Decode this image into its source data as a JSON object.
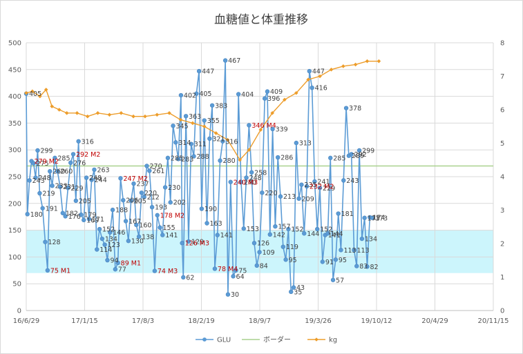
{
  "chart_data": {
    "type": "line",
    "title": "血糖値と体重推移",
    "x_ticks": [
      "16/6/29",
      "17/1/15",
      "17/8/3",
      "18/2/19",
      "18/9/7",
      "19/3/26",
      "19/10/12",
      "20/4/29",
      "20/11/15"
    ],
    "x_range": [
      "2016-06-29",
      "2020-11-15"
    ],
    "y_left": {
      "min": 0,
      "max": 500,
      "step": 50,
      "ticks": [
        "0",
        "50",
        "100",
        "150",
        "200",
        "250",
        "300",
        "350",
        "400",
        "450",
        "500"
      ]
    },
    "y_right": {
      "min": 0,
      "max": 8,
      "step": 1,
      "ticks": [
        "0",
        "1",
        "2",
        "3",
        "4",
        "5",
        "6",
        "7",
        "8"
      ]
    },
    "target_band": {
      "from": 70,
      "to": 150
    },
    "legend": {
      "position": "bottom",
      "entries": [
        "GLU",
        "ボーダー",
        "kg"
      ]
    },
    "colors": {
      "glu": "#5b9bd5",
      "border": "#a9d18e",
      "kg": "#ed9d2b",
      "band": "#ccf5fc",
      "grid": "#d9d9d9",
      "annotation": "#c00000"
    },
    "series": [
      {
        "name": "GLU",
        "values": [
          {
            "date": "2016-06-29",
            "y": 405
          },
          {
            "date": "2016-07-03",
            "y": 180
          },
          {
            "date": "2016-07-10",
            "y": 243
          },
          {
            "date": "2016-07-17",
            "y": 279
          },
          {
            "date": "2016-07-24",
            "y": 275
          },
          {
            "date": "2016-07-31",
            "y": 248
          },
          {
            "date": "2016-08-07",
            "y": 299
          },
          {
            "date": "2016-08-14",
            "y": 219
          },
          {
            "date": "2016-08-24",
            "y": 191
          },
          {
            "date": "2016-09-02",
            "y": 128
          },
          {
            "date": "2016-09-10",
            "y": 75
          },
          {
            "date": "2016-09-18",
            "y": 260
          },
          {
            "date": "2016-09-26",
            "y": 233
          },
          {
            "date": "2016-10-05",
            "y": 285
          },
          {
            "date": "2016-10-14",
            "y": 260
          },
          {
            "date": "2016-10-23",
            "y": 231
          },
          {
            "date": "2016-11-01",
            "y": 182
          },
          {
            "date": "2016-11-10",
            "y": 176
          },
          {
            "date": "2016-11-19",
            "y": 229
          },
          {
            "date": "2016-11-28",
            "y": 276
          },
          {
            "date": "2016-12-07",
            "y": 292
          },
          {
            "date": "2016-12-16",
            "y": 205
          },
          {
            "date": "2016-12-25",
            "y": 316
          },
          {
            "date": "2017-01-03",
            "y": 179
          },
          {
            "date": "2017-01-12",
            "y": 169
          },
          {
            "date": "2017-01-21",
            "y": 248
          },
          {
            "date": "2017-01-30",
            "y": 171
          },
          {
            "date": "2017-02-08",
            "y": 244
          },
          {
            "date": "2017-02-17",
            "y": 263
          },
          {
            "date": "2017-02-26",
            "y": 114
          },
          {
            "date": "2017-03-07",
            "y": 152
          },
          {
            "date": "2017-03-16",
            "y": 134
          },
          {
            "date": "2017-03-25",
            "y": 123
          },
          {
            "date": "2017-04-03",
            "y": 94
          },
          {
            "date": "2017-04-12",
            "y": 146
          },
          {
            "date": "2017-04-21",
            "y": 188
          },
          {
            "date": "2017-04-30",
            "y": 77
          },
          {
            "date": "2017-05-09",
            "y": 89
          },
          {
            "date": "2017-05-18",
            "y": 247
          },
          {
            "date": "2017-05-27",
            "y": 206
          },
          {
            "date": "2017-06-05",
            "y": 167
          },
          {
            "date": "2017-06-14",
            "y": 130
          },
          {
            "date": "2017-06-23",
            "y": 205
          },
          {
            "date": "2017-07-02",
            "y": 237
          },
          {
            "date": "2017-07-11",
            "y": 160
          },
          {
            "date": "2017-07-20",
            "y": 138
          },
          {
            "date": "2017-07-29",
            "y": 220
          },
          {
            "date": "2017-08-07",
            "y": 212
          },
          {
            "date": "2017-08-16",
            "y": 270
          },
          {
            "date": "2017-08-25",
            "y": 261
          },
          {
            "date": "2017-09-03",
            "y": 193
          },
          {
            "date": "2017-09-12",
            "y": 74
          },
          {
            "date": "2017-09-21",
            "y": 178
          },
          {
            "date": "2017-09-30",
            "y": 155
          },
          {
            "date": "2017-10-09",
            "y": 141
          },
          {
            "date": "2017-10-18",
            "y": 230
          },
          {
            "date": "2017-10-27",
            "y": 285
          },
          {
            "date": "2017-11-05",
            "y": 202
          },
          {
            "date": "2017-11-14",
            "y": 345
          },
          {
            "date": "2017-11-23",
            "y": 314
          },
          {
            "date": "2017-12-02",
            "y": 283
          },
          {
            "date": "2017-12-11",
            "y": 402
          },
          {
            "date": "2017-12-15",
            "y": 126
          },
          {
            "date": "2017-12-19",
            "y": 62
          },
          {
            "date": "2017-12-28",
            "y": 363
          },
          {
            "date": "2018-01-06",
            "y": 129
          },
          {
            "date": "2018-01-15",
            "y": 311
          },
          {
            "date": "2018-01-24",
            "y": 288
          },
          {
            "date": "2018-02-02",
            "y": 405
          },
          {
            "date": "2018-02-11",
            "y": 447
          },
          {
            "date": "2018-02-20",
            "y": 190
          },
          {
            "date": "2018-03-01",
            "y": 355
          },
          {
            "date": "2018-03-10",
            "y": 163
          },
          {
            "date": "2018-03-19",
            "y": 321
          },
          {
            "date": "2018-03-28",
            "y": 383
          },
          {
            "date": "2018-04-06",
            "y": 78
          },
          {
            "date": "2018-04-15",
            "y": 141
          },
          {
            "date": "2018-04-24",
            "y": 280
          },
          {
            "date": "2018-05-03",
            "y": 316
          },
          {
            "date": "2018-05-12",
            "y": 467
          },
          {
            "date": "2018-05-21",
            "y": 30
          },
          {
            "date": "2018-05-30",
            "y": 240
          },
          {
            "date": "2018-06-08",
            "y": 64
          },
          {
            "date": "2018-06-17",
            "y": 75
          },
          {
            "date": "2018-06-26",
            "y": 404
          },
          {
            "date": "2018-07-05",
            "y": 240
          },
          {
            "date": "2018-07-14",
            "y": 153
          },
          {
            "date": "2018-07-23",
            "y": 248
          },
          {
            "date": "2018-08-01",
            "y": 346
          },
          {
            "date": "2018-08-10",
            "y": 258
          },
          {
            "date": "2018-08-19",
            "y": 126
          },
          {
            "date": "2018-08-28",
            "y": 84
          },
          {
            "date": "2018-09-06",
            "y": 109
          },
          {
            "date": "2018-09-15",
            "y": 220
          },
          {
            "date": "2018-09-24",
            "y": 396
          },
          {
            "date": "2018-10-03",
            "y": 409
          },
          {
            "date": "2018-10-12",
            "y": 142
          },
          {
            "date": "2018-10-21",
            "y": 339
          },
          {
            "date": "2018-10-30",
            "y": 157
          },
          {
            "date": "2018-11-08",
            "y": 286
          },
          {
            "date": "2018-11-17",
            "y": 213
          },
          {
            "date": "2018-11-26",
            "y": 119
          },
          {
            "date": "2018-12-05",
            "y": 95
          },
          {
            "date": "2018-12-14",
            "y": 152
          },
          {
            "date": "2018-12-23",
            "y": 35
          },
          {
            "date": "2019-01-01",
            "y": 43
          },
          {
            "date": "2019-01-10",
            "y": 313
          },
          {
            "date": "2019-01-19",
            "y": 209
          },
          {
            "date": "2019-01-28",
            "y": 235
          },
          {
            "date": "2019-02-06",
            "y": 144
          },
          {
            "date": "2019-02-15",
            "y": 232
          },
          {
            "date": "2019-02-24",
            "y": 447
          },
          {
            "date": "2019-03-05",
            "y": 416
          },
          {
            "date": "2019-03-14",
            "y": 241
          },
          {
            "date": "2019-03-23",
            "y": 152
          },
          {
            "date": "2019-04-01",
            "y": 229
          },
          {
            "date": "2019-04-10",
            "y": 91
          },
          {
            "date": "2019-04-19",
            "y": 141
          },
          {
            "date": "2019-04-28",
            "y": 144
          },
          {
            "date": "2019-05-07",
            "y": 285
          },
          {
            "date": "2019-05-16",
            "y": 57
          },
          {
            "date": "2019-05-25",
            "y": 95
          },
          {
            "date": "2019-06-03",
            "y": 181
          },
          {
            "date": "2019-06-12",
            "y": 113
          },
          {
            "date": "2019-06-21",
            "y": 243
          },
          {
            "date": "2019-06-30",
            "y": 378
          },
          {
            "date": "2019-07-09",
            "y": 289
          },
          {
            "date": "2019-07-18",
            "y": 292
          },
          {
            "date": "2019-07-27",
            "y": 113
          },
          {
            "date": "2019-08-05",
            "y": 83
          },
          {
            "date": "2019-08-14",
            "y": 299
          },
          {
            "date": "2019-08-23",
            "y": 134
          },
          {
            "date": "2019-09-01",
            "y": 173
          },
          {
            "date": "2019-09-10",
            "y": 82
          },
          {
            "date": "2019-09-19",
            "y": 174
          },
          {
            "date": "2019-09-28",
            "y": 173
          }
        ]
      },
      {
        "name": "ボーダー",
        "values": [
          {
            "date": "2016-06-29",
            "y": 270
          },
          {
            "date": "2020-11-15",
            "y": 270
          }
        ]
      },
      {
        "name": "kg",
        "axis": "right",
        "values": [
          {
            "date": "2016-06-29",
            "y": 6.5
          },
          {
            "date": "2016-07-20",
            "y": 6.55
          },
          {
            "date": "2016-08-15",
            "y": 6.4
          },
          {
            "date": "2016-09-05",
            "y": 6.6
          },
          {
            "date": "2016-09-25",
            "y": 6.1
          },
          {
            "date": "2016-10-20",
            "y": 6.0
          },
          {
            "date": "2016-11-15",
            "y": 5.9
          },
          {
            "date": "2016-12-20",
            "y": 5.9
          },
          {
            "date": "2017-01-25",
            "y": 5.8
          },
          {
            "date": "2017-03-01",
            "y": 5.9
          },
          {
            "date": "2017-04-10",
            "y": 5.85
          },
          {
            "date": "2017-05-20",
            "y": 5.9
          },
          {
            "date": "2017-07-01",
            "y": 5.8
          },
          {
            "date": "2017-08-10",
            "y": 5.8
          },
          {
            "date": "2017-09-20",
            "y": 5.85
          },
          {
            "date": "2017-11-01",
            "y": 5.9
          },
          {
            "date": "2017-12-10",
            "y": 5.7
          },
          {
            "date": "2018-01-20",
            "y": 5.6
          },
          {
            "date": "2018-03-01",
            "y": 5.5
          },
          {
            "date": "2018-04-10",
            "y": 5.3
          },
          {
            "date": "2018-05-20",
            "y": 5.1
          },
          {
            "date": "2018-07-01",
            "y": 4.5
          },
          {
            "date": "2018-08-01",
            "y": 4.8
          },
          {
            "date": "2018-09-10",
            "y": 5.4
          },
          {
            "date": "2018-10-20",
            "y": 5.9
          },
          {
            "date": "2018-12-01",
            "y": 6.3
          },
          {
            "date": "2019-01-10",
            "y": 6.5
          },
          {
            "date": "2019-02-20",
            "y": 6.9
          },
          {
            "date": "2019-04-01",
            "y": 7.0
          },
          {
            "date": "2019-05-10",
            "y": 7.2
          },
          {
            "date": "2019-06-20",
            "y": 7.3
          },
          {
            "date": "2019-08-01",
            "y": 7.35
          },
          {
            "date": "2019-09-10",
            "y": 7.45
          },
          {
            "date": "2019-10-20",
            "y": 7.45
          }
        ]
      }
    ],
    "annotations": [
      {
        "text": "279 M2",
        "date": "2016-07-17",
        "y": 279
      },
      {
        "text": "75 M1",
        "date": "2016-09-10",
        "y": 75
      },
      {
        "text": "292 M2",
        "date": "2016-12-07",
        "y": 292
      },
      {
        "text": "247 M2",
        "date": "2017-05-18",
        "y": 247
      },
      {
        "text": "89 M1",
        "date": "2017-05-09",
        "y": 89
      },
      {
        "text": "74 M3",
        "date": "2017-09-12",
        "y": 74
      },
      {
        "text": "178 M2",
        "date": "2017-09-21",
        "y": 178
      },
      {
        "text": "126 M3",
        "date": "2017-12-15",
        "y": 126
      },
      {
        "text": "78 M4",
        "date": "2018-04-06",
        "y": 78
      },
      {
        "text": "240 M3",
        "date": "2018-05-30",
        "y": 240
      },
      {
        "text": "346 M4",
        "date": "2018-08-01",
        "y": 346
      },
      {
        "text": "232 M2",
        "date": "2019-02-15",
        "y": 232
      }
    ]
  }
}
